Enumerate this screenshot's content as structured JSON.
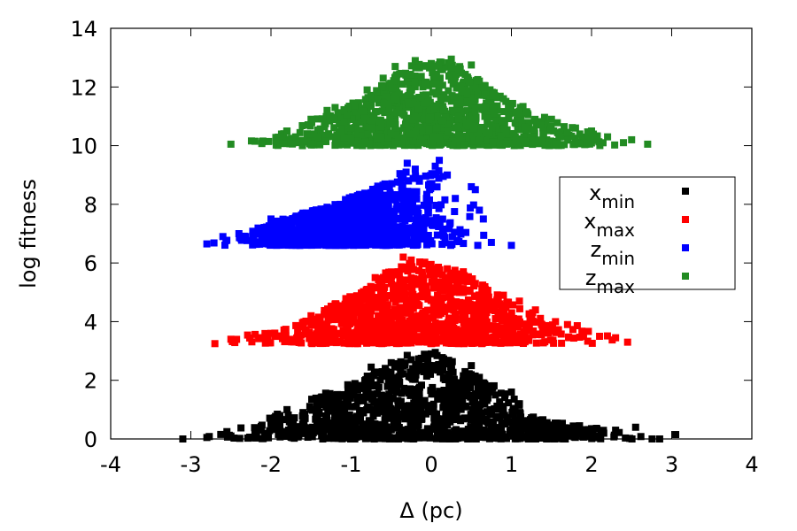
{
  "chart_data": {
    "type": "scatter",
    "title": "",
    "xlabel": "Δ (pc)",
    "ylabel": "log fitness",
    "xlim": [
      -4,
      4
    ],
    "ylim": [
      0,
      14
    ],
    "xticks": [
      "-4",
      "-3",
      "-2",
      "-1",
      "0",
      "1",
      "2",
      "3",
      "4"
    ],
    "yticks": [
      "0",
      "2",
      "4",
      "6",
      "8",
      "10",
      "12",
      "14"
    ],
    "grid": false,
    "legend_position": "right",
    "series": [
      {
        "legend_main": "x",
        "legend_sub": "min",
        "color": "#000000",
        "baseline": 0.0,
        "envelope": [
          [
            -3.1,
            0.05
          ],
          [
            -2.6,
            0.25
          ],
          [
            -2.2,
            0.5
          ],
          [
            -1.8,
            1.0
          ],
          [
            -1.4,
            1.5
          ],
          [
            -1.0,
            1.9
          ],
          [
            -0.6,
            2.4
          ],
          [
            -0.3,
            2.8
          ],
          [
            0.0,
            2.95
          ],
          [
            0.3,
            2.6
          ],
          [
            0.6,
            2.1
          ],
          [
            1.0,
            1.6
          ],
          [
            1.2,
            0.8
          ],
          [
            1.6,
            0.55
          ],
          [
            2.0,
            0.4
          ],
          [
            2.5,
            0.3
          ],
          [
            3.0,
            0.15
          ]
        ],
        "points": [
          [
            -3.1,
            0.0
          ],
          [
            -2.8,
            0.05
          ],
          [
            -2.55,
            0.25
          ],
          [
            -2.5,
            0.1
          ],
          [
            -2.2,
            0.3
          ],
          [
            -2.0,
            0.6
          ],
          [
            -1.8,
            1.0
          ],
          [
            -1.6,
            0.9
          ],
          [
            -1.2,
            1.5
          ],
          [
            -1.0,
            1.8
          ],
          [
            -0.75,
            2.45
          ],
          [
            -0.5,
            2.6
          ],
          [
            -0.3,
            2.85
          ],
          [
            -0.25,
            2.7
          ],
          [
            0.0,
            2.9
          ],
          [
            0.05,
            2.95
          ],
          [
            0.2,
            2.6
          ],
          [
            0.5,
            2.5
          ],
          [
            0.6,
            2.1
          ],
          [
            0.8,
            1.5
          ],
          [
            1.0,
            1.6
          ],
          [
            1.1,
            1.2
          ],
          [
            1.3,
            0.6
          ],
          [
            1.6,
            0.45
          ],
          [
            1.85,
            0.45
          ],
          [
            2.0,
            0.35
          ],
          [
            2.3,
            0.3
          ],
          [
            2.55,
            0.4
          ],
          [
            2.85,
            0.0
          ],
          [
            3.05,
            0.15
          ]
        ]
      },
      {
        "legend_main": "x",
        "legend_sub": "max",
        "color": "#ff0000",
        "baseline": 3.25,
        "envelope": [
          [
            -2.7,
            3.3
          ],
          [
            -2.4,
            3.5
          ],
          [
            -2.0,
            3.7
          ],
          [
            -1.6,
            4.0
          ],
          [
            -1.2,
            4.6
          ],
          [
            -0.8,
            5.2
          ],
          [
            -0.5,
            5.8
          ],
          [
            -0.3,
            6.1
          ],
          [
            -0.1,
            6.1
          ],
          [
            0.2,
            5.9
          ],
          [
            0.5,
            5.5
          ],
          [
            0.9,
            4.8
          ],
          [
            1.3,
            4.3
          ],
          [
            1.7,
            4.0
          ],
          [
            2.0,
            3.7
          ],
          [
            2.4,
            3.5
          ]
        ],
        "points": [
          [
            -2.7,
            3.25
          ],
          [
            -2.5,
            3.4
          ],
          [
            -2.0,
            3.6
          ],
          [
            -1.5,
            4.2
          ],
          [
            -1.2,
            4.6
          ],
          [
            -0.8,
            5.1
          ],
          [
            -0.7,
            5.5
          ],
          [
            -0.35,
            6.2
          ],
          [
            -0.25,
            6.1
          ],
          [
            -0.1,
            6.0
          ],
          [
            0.2,
            5.8
          ],
          [
            0.4,
            5.7
          ],
          [
            0.55,
            5.3
          ],
          [
            0.7,
            5.0
          ],
          [
            0.9,
            4.9
          ],
          [
            1.1,
            4.7
          ],
          [
            1.3,
            4.4
          ],
          [
            1.55,
            4.0
          ],
          [
            1.7,
            3.9
          ],
          [
            1.9,
            3.5
          ],
          [
            2.1,
            3.5
          ],
          [
            2.3,
            3.45
          ],
          [
            2.45,
            3.3
          ]
        ]
      },
      {
        "legend_main": "z",
        "legend_sub": "min",
        "color": "#0000ff",
        "baseline": 6.6,
        "envelope": [
          [
            -2.8,
            6.7
          ],
          [
            -2.4,
            7.0
          ],
          [
            -2.0,
            7.4
          ],
          [
            -1.6,
            7.7
          ],
          [
            -1.2,
            8.0
          ],
          [
            -0.8,
            8.5
          ],
          [
            -0.5,
            8.8
          ],
          [
            -0.3,
            9.3
          ],
          [
            -0.1,
            8.9
          ],
          [
            0.0,
            9.2
          ],
          [
            0.1,
            9.4
          ],
          [
            0.25,
            8.2
          ],
          [
            0.35,
            7.3
          ],
          [
            0.45,
            7.6
          ],
          [
            0.55,
            8.4
          ],
          [
            0.65,
            7.6
          ],
          [
            0.8,
            6.8
          ]
        ],
        "points": [
          [
            -2.8,
            6.65
          ],
          [
            -2.6,
            6.9
          ],
          [
            -2.4,
            7.0
          ],
          [
            -2.0,
            7.5
          ],
          [
            -1.6,
            7.7
          ],
          [
            -1.3,
            7.9
          ],
          [
            -0.9,
            8.3
          ],
          [
            -0.6,
            8.6
          ],
          [
            -0.35,
            9.0
          ],
          [
            -0.3,
            9.4
          ],
          [
            -0.2,
            9.2
          ],
          [
            0.05,
            9.3
          ],
          [
            0.1,
            9.5
          ],
          [
            0.2,
            9.0
          ],
          [
            0.3,
            8.2
          ],
          [
            0.5,
            8.6
          ],
          [
            0.55,
            8.5
          ],
          [
            0.6,
            7.8
          ],
          [
            0.65,
            7.5
          ],
          [
            0.75,
            6.7
          ],
          [
            1.0,
            6.6
          ]
        ]
      },
      {
        "legend_main": "z",
        "legend_sub": "max",
        "color": "#228b22",
        "baseline": 10.0,
        "envelope": [
          [
            -2.5,
            10.1
          ],
          [
            -2.0,
            10.3
          ],
          [
            -1.6,
            10.7
          ],
          [
            -1.2,
            11.2
          ],
          [
            -0.8,
            11.7
          ],
          [
            -0.5,
            12.3
          ],
          [
            -0.2,
            12.8
          ],
          [
            0.1,
            12.9
          ],
          [
            0.4,
            12.7
          ],
          [
            0.7,
            12.0
          ],
          [
            1.1,
            11.4
          ],
          [
            1.5,
            10.9
          ],
          [
            1.9,
            10.5
          ],
          [
            2.3,
            10.3
          ],
          [
            2.7,
            10.1
          ]
        ],
        "points": [
          [
            -2.5,
            10.05
          ],
          [
            -2.2,
            10.15
          ],
          [
            -1.8,
            10.5
          ],
          [
            -1.5,
            10.9
          ],
          [
            -1.3,
            11.2
          ],
          [
            -1.2,
            11.3
          ],
          [
            -0.8,
            11.9
          ],
          [
            -0.6,
            12.3
          ],
          [
            -0.45,
            12.7
          ],
          [
            -0.2,
            12.9
          ],
          [
            0.0,
            12.8
          ],
          [
            0.25,
            12.95
          ],
          [
            0.5,
            12.75
          ],
          [
            0.6,
            12.2
          ],
          [
            0.9,
            11.6
          ],
          [
            1.1,
            11.1
          ],
          [
            1.5,
            10.9
          ],
          [
            1.8,
            10.6
          ],
          [
            2.0,
            10.5
          ],
          [
            2.2,
            10.3
          ],
          [
            2.5,
            10.2
          ],
          [
            2.7,
            10.05
          ]
        ]
      }
    ]
  }
}
